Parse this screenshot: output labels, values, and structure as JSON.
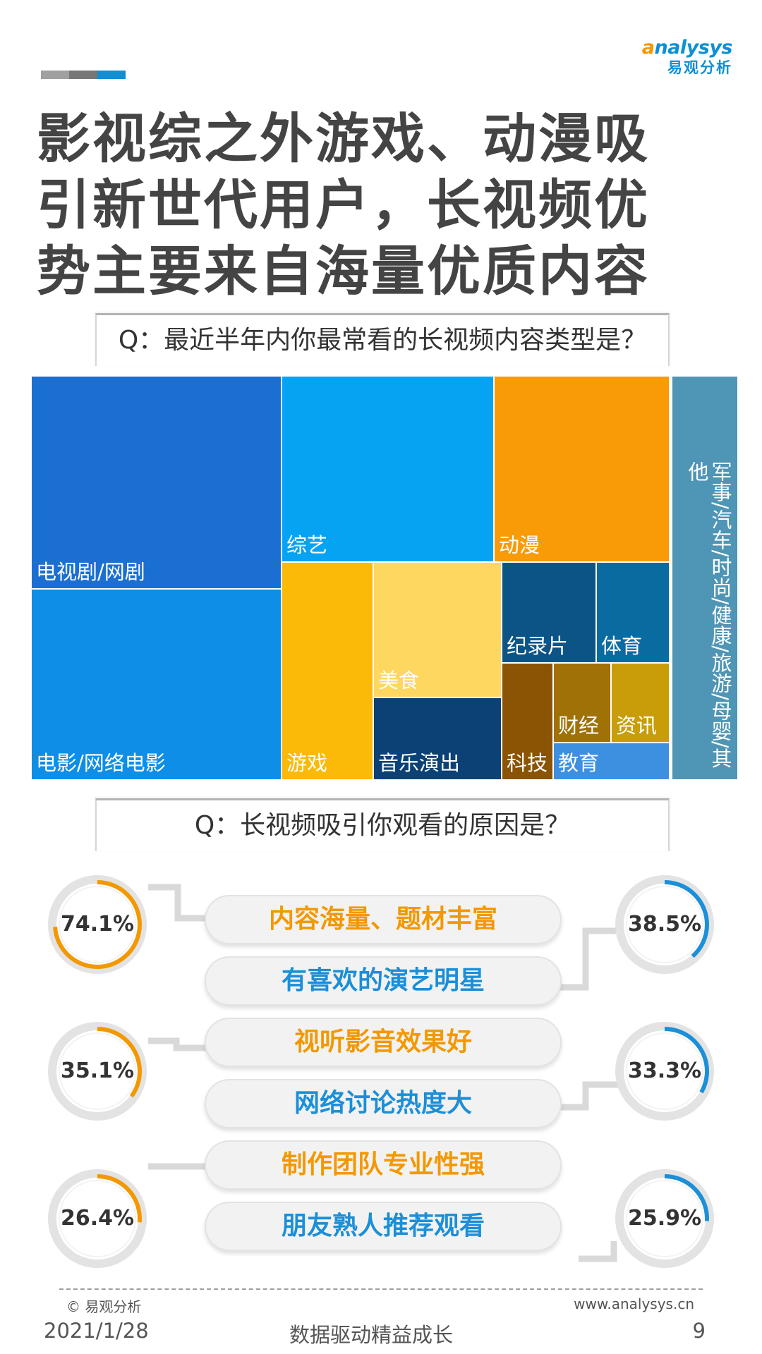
{
  "header": {
    "logo_en_a": "a",
    "logo_en_rest": "nalysys",
    "logo_cn": "易观分析",
    "colors": {
      "deco_gray1": "#a0a0a0",
      "deco_gray2": "#777777",
      "deco_blue": "#0e8fd6"
    }
  },
  "title_lines": [
    "影视综之外游戏、动漫吸",
    "引新世代用户，长视频优",
    "势主要来自海量优质内容"
  ],
  "question1": "Q：最近半年内你最常看的长视频内容类型是？",
  "treemap": {
    "items": [
      {
        "label": "电视剧/网剧",
        "color": "#1c6fd2"
      },
      {
        "label": "电影/网络电影",
        "color": "#0e8ee6"
      },
      {
        "label": "综艺",
        "color": "#06a3f2"
      },
      {
        "label": "动漫",
        "color": "#f89b07"
      },
      {
        "label": "游戏",
        "color": "#fbb908"
      },
      {
        "label": "美食",
        "color": "#fdd760"
      },
      {
        "label": "音乐演出",
        "color": "#0b4174"
      },
      {
        "label": "纪录片",
        "color": "#0c5486"
      },
      {
        "label": "体育",
        "color": "#0a6ba1"
      },
      {
        "label": "科技",
        "color": "#8a5404"
      },
      {
        "label": "财经",
        "color": "#a07107"
      },
      {
        "label": "资讯",
        "color": "#c99d09"
      },
      {
        "label": "教育",
        "color": "#3d8fe0"
      },
      {
        "label": "军事/汽车/时尚/健康/旅游/母婴/其他",
        "color": "#4f95b5"
      }
    ]
  },
  "question2": "Q：长视频吸引你观看的原因是？",
  "reasons": [
    {
      "label": "内容海量、题材丰富",
      "value": "74.1%",
      "pct": 0.741,
      "color": "#f39800"
    },
    {
      "label": "有喜欢的演艺明星",
      "value": "38.5%",
      "pct": 0.385,
      "color": "#1b8fd8"
    },
    {
      "label": "视听影音效果好",
      "value": "35.1%",
      "pct": 0.351,
      "color": "#f39800"
    },
    {
      "label": "网络讨论热度大",
      "value": "33.3%",
      "pct": 0.333,
      "color": "#1b8fd8"
    },
    {
      "label": "制作团队专业性强",
      "value": "26.4%",
      "pct": 0.264,
      "color": "#f39800"
    },
    {
      "label": "朋友熟人推荐观看",
      "value": "25.9%",
      "pct": 0.259,
      "color": "#1b8fd8"
    }
  ],
  "footer": {
    "copyright": "© 易观分析",
    "website": "www.analysys.cn",
    "date": "2021/1/28",
    "slogan": "数据驱动精益成长",
    "page": "9"
  }
}
